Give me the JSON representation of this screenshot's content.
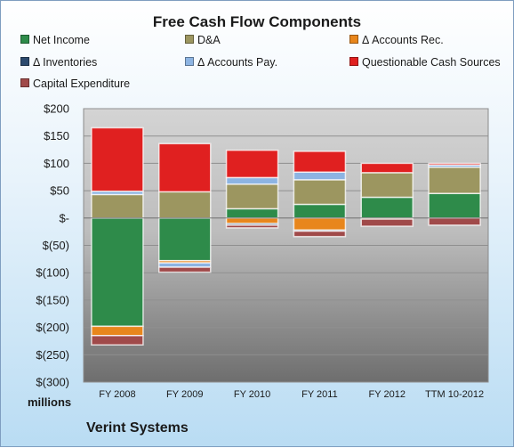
{
  "chart_data": {
    "type": "bar",
    "stacked": true,
    "title": "Free Cash Flow Components",
    "y_unit_label": "millions",
    "company": "Verint Systems",
    "categories": [
      "FY 2008",
      "FY 2009",
      "FY 2010",
      "FY 2011",
      "FY 2012",
      "TTM 10-2012"
    ],
    "y_ticks": [
      "$200",
      "$150",
      "$100",
      "$50",
      "$-",
      "$(50)",
      "$(100)",
      "$(150)",
      "$(200)",
      "$(250)",
      "$(300)"
    ],
    "ylim": [
      -300,
      200
    ],
    "grid": true,
    "legend_position": "top",
    "series": [
      {
        "name": "Net Income",
        "color": "#2e8b4a",
        "values": [
          -198,
          -78,
          17,
          25,
          38,
          45
        ]
      },
      {
        "name": "D&A",
        "color": "#9c9660",
        "values": [
          43,
          48,
          45,
          45,
          45,
          48
        ]
      },
      {
        "name": "Δ Accounts Rec.",
        "color": "#e8861c",
        "values": [
          -17,
          -4,
          -10,
          -22,
          -2,
          0
        ]
      },
      {
        "name": "Δ Inventories",
        "color": "#2c4a6e",
        "values": [
          0,
          0,
          -3,
          -2,
          0,
          0
        ]
      },
      {
        "name": "Δ Accounts Pay.",
        "color": "#8db4e2",
        "values": [
          6,
          -8,
          12,
          14,
          0,
          4
        ]
      },
      {
        "name": "Questionable Cash Sources",
        "color": "#e02020",
        "values": [
          116,
          88,
          50,
          38,
          17,
          3
        ]
      },
      {
        "name": "Capital Expenditure",
        "color": "#a04a4a",
        "values": [
          -17,
          -9,
          -5,
          -10,
          -13,
          -13
        ]
      }
    ]
  }
}
